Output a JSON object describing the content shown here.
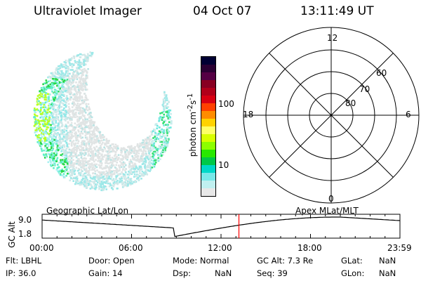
{
  "header": {
    "instrument": "Ultraviolet Imager",
    "date": "04 Oct 07",
    "time": "13:11:49 UT"
  },
  "colorbar": {
    "label_html": "photon cm<sup>-2</sup>s<sup>-1</sup>",
    "ticks": [
      "100",
      "10"
    ],
    "colors": [
      "#000033",
      "#2a0033",
      "#550044",
      "#880022",
      "#b0001a",
      "#d80012",
      "#ff4000",
      "#ff8c00",
      "#ffd200",
      "#ffff66",
      "#d8ff00",
      "#8cff00",
      "#28e800",
      "#00c848",
      "#00d8c8",
      "#78e8e8",
      "#c0f0f0",
      "#e8e8e8"
    ]
  },
  "polar_plot": {
    "mlt_labels": {
      "top": "12",
      "left": "18",
      "right": "6",
      "bottom": "0"
    },
    "lat_labels": [
      "60",
      "70",
      "80"
    ]
  },
  "timeline": {
    "left_label": "Geographic Lat/Lon",
    "right_label": "Apex MLat/MLT",
    "y_axis_label": "GC Alt",
    "y_ticks": [
      "9.0",
      "1.8"
    ],
    "x_ticks": [
      "00:00",
      "06:00",
      "12:00",
      "18:00",
      "23:59"
    ],
    "marker_color": "#ff0000",
    "marker_time_hours": 13.2
  },
  "footer": {
    "flt": "Flt: LBHL",
    "ip": "IP: 36.0",
    "door": "Door: Open",
    "gain": "Gain: 14",
    "mode": "Mode: Normal",
    "dsp_label": "Dsp:",
    "dsp_value": "NaN",
    "gc_alt": "GC Alt: 7.3 Re",
    "seq": "Seq: 39",
    "glat_label": "GLat:",
    "glat_value": "NaN",
    "glon_label": "GLon:",
    "glon_value": "NaN"
  }
}
